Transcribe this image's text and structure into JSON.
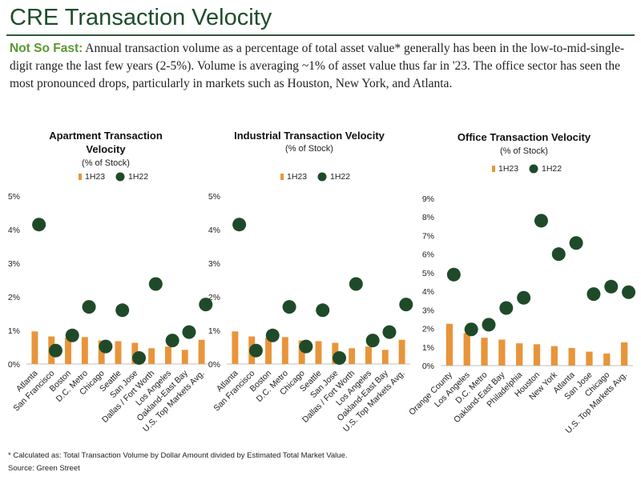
{
  "header": {
    "title": "CRE Transaction Velocity",
    "lead": "Not So Fast:",
    "body": " Annual transaction volume as a percentage of total asset value* generally has been in the low-to-mid-single-digit range the last few years (2-5%). Volume is averaging ~1% of asset value thus far in '23. The office sector has seen the most pronounced drops, particularly in markets such as Houston, New York, and Atlanta."
  },
  "colors": {
    "bar": "#e8953a",
    "dot": "#1f4a2a",
    "title": "#1e4d2b"
  },
  "legend": {
    "series_a": "1H23",
    "series_b": "1H22"
  },
  "chart_data": [
    {
      "type": "bar",
      "title": "Apartment Transaction Velocity",
      "subtitle": "(% of Stock)",
      "categories": [
        "Atlanta",
        "San Francisco",
        "Boston",
        "D.C. Metro",
        "Chicago",
        "Seattle",
        "San Jose",
        "Dallas / Fort Worth",
        "Los Angeles",
        "Oakland-East Bay",
        "U.S. Top Markets Avg."
      ],
      "series": [
        {
          "name": "1H23",
          "style": "bar",
          "values": [
            0.97,
            0.82,
            0.78,
            0.8,
            0.7,
            0.68,
            0.63,
            0.47,
            0.52,
            0.42,
            0.72
          ]
        },
        {
          "name": "1H22",
          "style": "dot",
          "values": [
            4.15,
            0.4,
            0.85,
            1.7,
            0.52,
            1.6,
            0.18,
            2.38,
            0.7,
            0.95,
            1.77
          ]
        }
      ],
      "ylim": [
        0,
        5
      ],
      "yticks": [
        "0%",
        "1%",
        "2%",
        "3%",
        "4%",
        "5%"
      ]
    },
    {
      "type": "bar",
      "title": "Industrial Transaction Velocity",
      "subtitle": "(% of Stock)",
      "categories": [
        "Atlanta",
        "San Francisco",
        "Boston",
        "D.C. Metro",
        "Chicago",
        "Seattle",
        "San Jose",
        "Dallas / Fort Worth",
        "Los Angeles",
        "Oakland-East Bay",
        "U.S. Top Markets Avg."
      ],
      "series": [
        {
          "name": "1H23",
          "style": "bar",
          "values": [
            0.97,
            0.82,
            0.78,
            0.8,
            0.7,
            0.68,
            0.63,
            0.47,
            0.52,
            0.42,
            0.72
          ]
        },
        {
          "name": "1H22",
          "style": "dot",
          "values": [
            4.15,
            0.4,
            0.85,
            1.7,
            0.52,
            1.6,
            0.18,
            2.38,
            0.7,
            0.95,
            1.77
          ]
        }
      ],
      "ylim": [
        0,
        5
      ],
      "yticks": [
        "0%",
        "1%",
        "2%",
        "3%",
        "4%",
        "5%"
      ]
    },
    {
      "type": "bar",
      "title": "Office Transaction Velocity",
      "subtitle": "(% of Stock)",
      "categories": [
        "Orange County",
        "Los Angeles",
        "D.C. Metro",
        "Oakland-East Bay",
        "Philadelphia",
        "Houston",
        "New York",
        "Atlanta",
        "San Jose",
        "Chicago",
        "U.S. Top Markets Avg."
      ],
      "series": [
        {
          "name": "1H23",
          "style": "bar",
          "values": [
            2.25,
            1.75,
            1.5,
            1.4,
            1.2,
            1.15,
            1.05,
            0.95,
            0.75,
            0.65,
            1.25
          ]
        },
        {
          "name": "1H22",
          "style": "dot",
          "values": [
            4.9,
            1.95,
            2.2,
            3.1,
            3.65,
            7.8,
            6.0,
            6.6,
            3.85,
            4.25,
            3.95
          ]
        }
      ],
      "ylim": [
        0,
        9
      ],
      "yticks": [
        "0%",
        "1%",
        "2%",
        "3%",
        "4%",
        "5%",
        "6%",
        "7%",
        "8%",
        "9%"
      ]
    }
  ],
  "footer": {
    "note": "* Calculated as: Total Transaction Volume by Dollar Amount divided by Estimated Total Market Value.",
    "source": "Source: Green Street"
  }
}
